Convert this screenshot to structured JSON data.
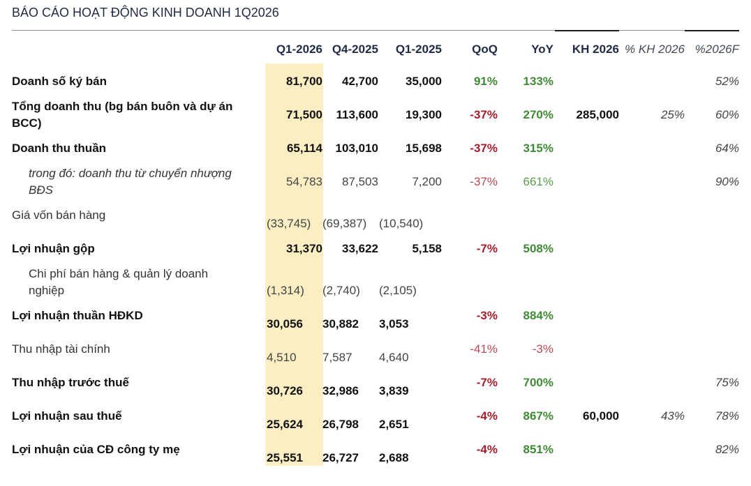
{
  "title": "BÁO CÁO HOẠT ĐỘNG KINH DOANH 1Q2026",
  "colors": {
    "highlight": "#fbeec2",
    "positive": "#3f8a35",
    "negative": "#a51e2d",
    "title": "#1f2a44"
  },
  "headers": {
    "q1_2026": "Q1-2026",
    "q4_2025": "Q4-2025",
    "q1_2025": "Q1-2025",
    "qoq": "QoQ",
    "yoy": "YoY",
    "kh2026": "KH 2026",
    "pct_kh2026": "% KH 2026",
    "pct_2026f": "%2026F"
  },
  "rows": {
    "doanh_so": {
      "label": "Doanh số ký bán",
      "q1_2026": "81,700",
      "q4_2025": "42,700",
      "q1_2025": "35,000",
      "qoq": "91%",
      "yoy": "133%",
      "pct_2026f": "52%"
    },
    "tong_dt": {
      "label_line1": "Tổng doanh thu (bg bán buôn và dự án",
      "label_line2": "BCC)",
      "q1_2026": "71,500",
      "q4_2025": "113,600",
      "q1_2025": "19,300",
      "qoq": "-37%",
      "yoy": "270%",
      "kh2026": "285,000",
      "pct_kh2026": "25%",
      "pct_2026f": "60%"
    },
    "dt_thuan": {
      "label": "Doanh thu thuần",
      "q1_2026": "65,114",
      "q4_2025": "103,010",
      "q1_2025": "15,698",
      "qoq": "-37%",
      "yoy": "315%",
      "pct_2026f": "64%"
    },
    "dt_bds": {
      "label_line1": "trong đó: doanh thu từ chuyển nhượng",
      "label_line2": "BĐS",
      "q1_2026": "54,783",
      "q4_2025": "87,503",
      "q1_2025": "7,200",
      "qoq": "-37%",
      "yoy": "661%",
      "pct_2026f": "90%"
    },
    "gia_von": {
      "label": "Giá vốn bán hàng",
      "q1_2026": "(33,745)",
      "q4_2025": "(69,387)",
      "q1_2025": "(10,540)"
    },
    "ln_gop": {
      "label": "Lợi nhuận gộp",
      "q1_2026": "31,370",
      "q4_2025": "33,622",
      "q1_2025": "5,158",
      "qoq": "-7%",
      "yoy": "508%"
    },
    "chi_phi": {
      "label_line1": "Chi phí bán hàng & quản lý doanh",
      "label_line2": "nghiệp",
      "q1_2026": "(1,314)",
      "q4_2025": "(2,740)",
      "q1_2025": "(2,105)"
    },
    "ln_hdkd": {
      "label": "Lợi nhuận thuần HĐKD",
      "q1_2026": "30,056",
      "q4_2025": "30,882",
      "q1_2025": "3,053",
      "qoq": "-3%",
      "yoy": "884%"
    },
    "thu_nhap_tc": {
      "label": "Thu nhập tài chính",
      "q1_2026": "4,510",
      "q4_2025": "7,587",
      "q1_2025": "4,640",
      "qoq": "-41%",
      "yoy": "-3%"
    },
    "tn_truoc_thue": {
      "label": "Thu nhập trước thuế",
      "q1_2026": "30,726",
      "q4_2025": "32,986",
      "q1_2025": "3,839",
      "qoq": "-7%",
      "yoy": "700%",
      "pct_2026f": "75%"
    },
    "ln_sau_thue": {
      "label": "Lợi nhuận sau thuế",
      "q1_2026": "25,624",
      "q4_2025": "26,798",
      "q1_2025": "2,651",
      "qoq": "-4%",
      "yoy": "867%",
      "kh2026": "60,000",
      "pct_kh2026": "43%",
      "pct_2026f": "78%"
    },
    "ln_cong_ty_me": {
      "label": "Lợi nhuận của CĐ công ty mẹ",
      "q1_2026": "25,551",
      "q4_2025": "26,727",
      "q1_2025": "2,688",
      "qoq": "-4%",
      "yoy": "851%",
      "pct_2026f": "82%"
    }
  }
}
